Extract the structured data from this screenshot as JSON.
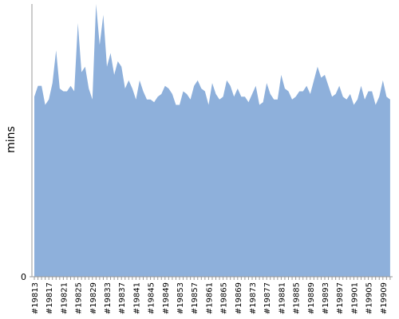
{
  "chart_data": {
    "type": "area",
    "y_label": "mins",
    "color": "#8eb0db",
    "categories": [
      "#19813",
      null,
      null,
      null,
      "#19817",
      null,
      null,
      null,
      "#19821",
      null,
      null,
      null,
      "#19825",
      null,
      null,
      null,
      "#19829",
      null,
      null,
      null,
      "#19833",
      null,
      null,
      null,
      "#19837",
      null,
      null,
      null,
      "#19841",
      null,
      null,
      null,
      "#19845",
      null,
      null,
      null,
      "#19849",
      null,
      null,
      null,
      "#19853",
      null,
      null,
      null,
      "#19857",
      null,
      null,
      null,
      "#19861",
      null,
      null,
      null,
      "#19865",
      null,
      null,
      null,
      "#19869",
      null,
      null,
      null,
      "#19873",
      null,
      null,
      null,
      "#19877",
      null,
      null,
      null,
      "#19881",
      null,
      null,
      null,
      "#19885",
      null,
      null,
      null,
      "#19889",
      null,
      null,
      null,
      "#19893",
      null,
      null,
      null,
      "#19897",
      null,
      null,
      null,
      "#19901",
      null,
      null,
      null,
      "#19905",
      null,
      null,
      null,
      "#19909",
      null,
      null
    ],
    "values": [
      66,
      70,
      70,
      63,
      65,
      71,
      83,
      69,
      68,
      68,
      70,
      68,
      93,
      75,
      77,
      69,
      65,
      100,
      85,
      96,
      77,
      82,
      74,
      79,
      77,
      69,
      72,
      69,
      65,
      72,
      68,
      65,
      65,
      64,
      66,
      67,
      70,
      69,
      67,
      63,
      63,
      68,
      67,
      65,
      70,
      72,
      69,
      68,
      63,
      71,
      67,
      65,
      66,
      72,
      70,
      66,
      69,
      66,
      66,
      64,
      67,
      70,
      63,
      64,
      71,
      67,
      65,
      65,
      74,
      69,
      68,
      65,
      66,
      68,
      68,
      70,
      67,
      72,
      77,
      73,
      74,
      70,
      66,
      67,
      70,
      66,
      65,
      67,
      63,
      65,
      70,
      65,
      68,
      68,
      63,
      66,
      72,
      66,
      65
    ],
    "ylim": [
      0,
      100
    ],
    "yticks": [
      0
    ]
  }
}
